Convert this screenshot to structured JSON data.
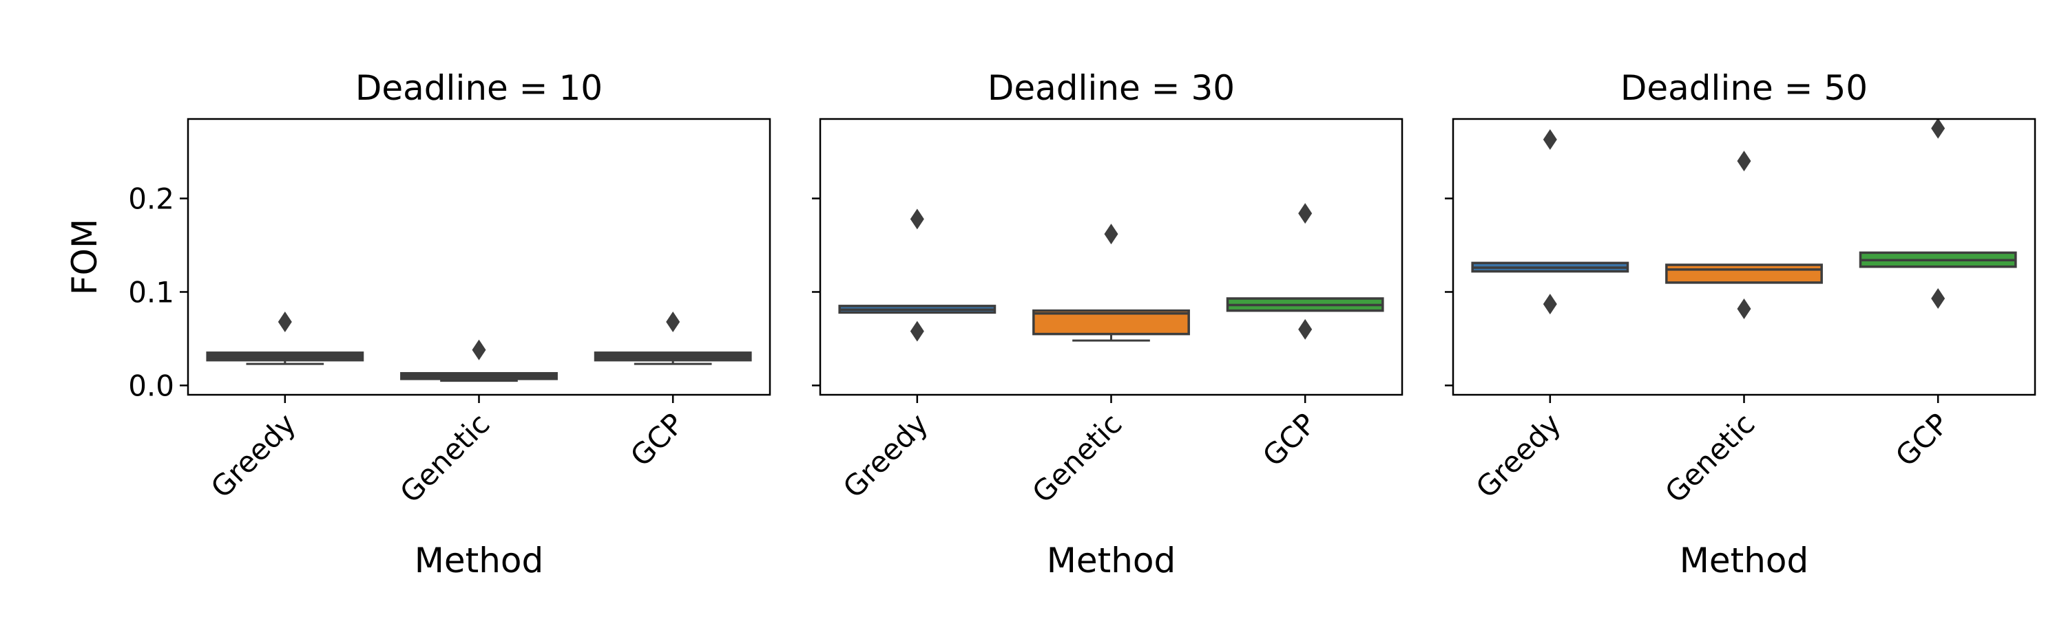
{
  "chart_data": [
    {
      "type": "box",
      "title": "Deadline = 10",
      "xlabel": "Method",
      "ylabel": "FOM",
      "categories": [
        "Greedy",
        "Genetic",
        "GCP"
      ],
      "ylim": [
        -0.01,
        0.285
      ],
      "yticks": [
        0.0,
        0.1,
        0.2
      ],
      "ytick_labels": [
        "0.0",
        "0.1",
        "0.2"
      ],
      "boxes": [
        {
          "category": "Greedy",
          "whisker_low": 0.023,
          "q1": 0.027,
          "median": 0.031,
          "q3": 0.035,
          "whisker_high": 0.035,
          "outliers": [
            0.068
          ]
        },
        {
          "category": "Genetic",
          "whisker_low": 0.005,
          "q1": 0.007,
          "median": 0.01,
          "q3": 0.013,
          "whisker_high": 0.013,
          "outliers": [
            0.038
          ]
        },
        {
          "category": "GCP",
          "whisker_low": 0.023,
          "q1": 0.027,
          "median": 0.031,
          "q3": 0.035,
          "whisker_high": 0.035,
          "outliers": [
            0.068
          ]
        }
      ]
    },
    {
      "type": "box",
      "title": "Deadline = 30",
      "xlabel": "Method",
      "ylabel": "",
      "categories": [
        "Greedy",
        "Genetic",
        "GCP"
      ],
      "ylim": [
        -0.01,
        0.285
      ],
      "yticks": [
        0.0,
        0.1,
        0.2
      ],
      "ytick_labels": [
        "",
        "",
        ""
      ],
      "boxes": [
        {
          "category": "Greedy",
          "whisker_low": 0.078,
          "q1": 0.078,
          "median": 0.081,
          "q3": 0.085,
          "whisker_high": 0.085,
          "outliers": [
            0.178,
            0.058
          ]
        },
        {
          "category": "Genetic",
          "whisker_low": 0.048,
          "q1": 0.055,
          "median": 0.077,
          "q3": 0.08,
          "whisker_high": 0.08,
          "outliers": [
            0.162
          ]
        },
        {
          "category": "GCP",
          "whisker_low": 0.08,
          "q1": 0.08,
          "median": 0.086,
          "q3": 0.093,
          "whisker_high": 0.093,
          "outliers": [
            0.184,
            0.06
          ]
        }
      ]
    },
    {
      "type": "box",
      "title": "Deadline = 50",
      "xlabel": "Method",
      "ylabel": "",
      "categories": [
        "Greedy",
        "Genetic",
        "GCP"
      ],
      "ylim": [
        -0.01,
        0.285
      ],
      "yticks": [
        0.0,
        0.1,
        0.2
      ],
      "ytick_labels": [
        "",
        "",
        ""
      ],
      "boxes": [
        {
          "category": "Greedy",
          "whisker_low": 0.122,
          "q1": 0.122,
          "median": 0.126,
          "q3": 0.131,
          "whisker_high": 0.131,
          "outliers": [
            0.263,
            0.087
          ]
        },
        {
          "category": "Genetic",
          "whisker_low": 0.11,
          "q1": 0.11,
          "median": 0.124,
          "q3": 0.129,
          "whisker_high": 0.129,
          "outliers": [
            0.24,
            0.082
          ]
        },
        {
          "category": "GCP",
          "whisker_low": 0.127,
          "q1": 0.127,
          "median": 0.134,
          "q3": 0.142,
          "whisker_high": 0.142,
          "outliers": [
            0.275,
            0.093
          ]
        }
      ]
    }
  ],
  "colors": {
    "Greedy": "#3a74a8",
    "Genetic": "#e58125",
    "GCP": "#3f9f3f",
    "dark_box": "#3d3d3d",
    "line": "#3d3d3d",
    "outlier": "#3d3d3d"
  }
}
